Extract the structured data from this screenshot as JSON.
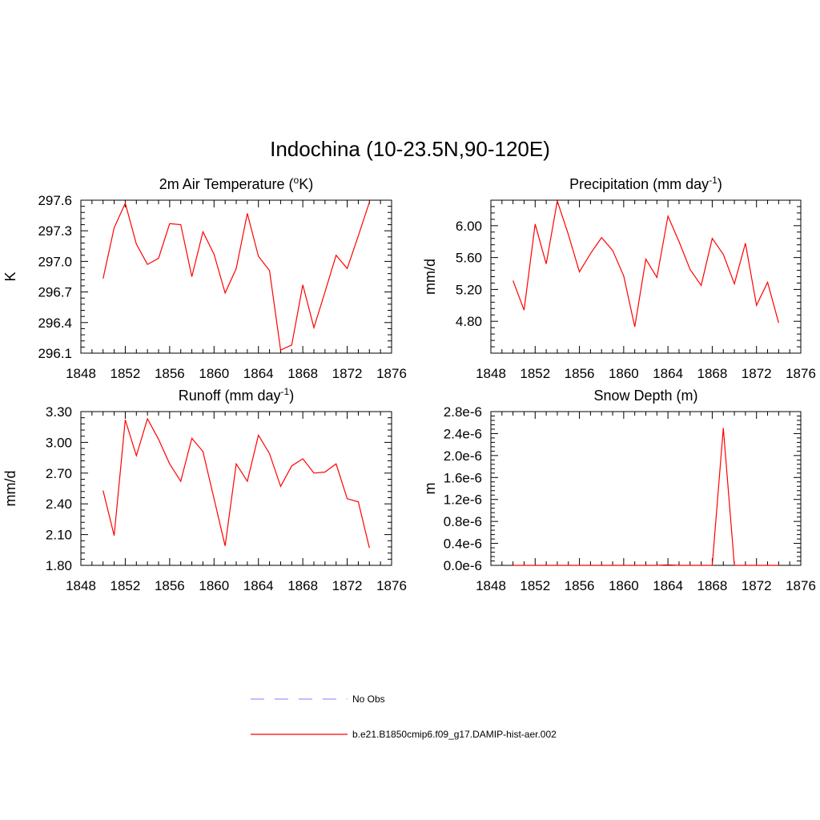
{
  "title": "Indochina (10-23.5N,90-120E)",
  "colors": {
    "model": "#ff0000",
    "obs": "#9999ff"
  },
  "legend": {
    "entries": [
      {
        "label": "No Obs",
        "style": "dashed",
        "color": "#9999ff"
      },
      {
        "label": "b.e21.B1850cmip6.f09_g17.DAMIP-hist-aer.002",
        "style": "solid",
        "color": "#ff0000"
      }
    ],
    "placement": "bottom-center"
  },
  "chart_data": [
    {
      "type": "line",
      "title": "2m Air Temperature (",
      "title_sup": "o",
      "title_end": "K)",
      "ylabel": "K",
      "xlim": [
        1848,
        1876
      ],
      "ylim": [
        296.1,
        297.6
      ],
      "xticks": [
        "1848",
        "1852",
        "1856",
        "1860",
        "1864",
        "1868",
        "1872",
        "1876"
      ],
      "yticks": [
        "296.1",
        "296.4",
        "296.7",
        "297.0",
        "297.3",
        "297.6"
      ],
      "grid": false,
      "x": [
        1850,
        1851,
        1852,
        1853,
        1854,
        1855,
        1856,
        1857,
        1858,
        1859,
        1860,
        1861,
        1862,
        1863,
        1864,
        1865,
        1866,
        1867,
        1868,
        1869,
        1870,
        1871,
        1872,
        1873,
        1874
      ],
      "series": [
        {
          "name": "b.e21.B1850cmip6.f09_g17.DAMIP-hist-aer.002",
          "values": [
            296.83,
            297.33,
            297.57,
            297.17,
            296.97,
            297.03,
            297.37,
            297.36,
            296.85,
            297.29,
            297.07,
            296.69,
            296.93,
            297.47,
            297.05,
            296.91,
            296.13,
            296.18,
            296.77,
            296.35,
            296.7,
            297.06,
            296.93,
            297.25,
            297.58
          ]
        }
      ]
    },
    {
      "type": "line",
      "title": "Precipitation (mm day",
      "title_sup": "-1",
      "title_end": ")",
      "ylabel": "mm/d",
      "xlim": [
        1848,
        1876
      ],
      "ylim": [
        4.4,
        6.32
      ],
      "xticks": [
        "1848",
        "1852",
        "1856",
        "1860",
        "1864",
        "1868",
        "1872",
        "1876"
      ],
      "yticks": [
        "4.80",
        "5.20",
        "5.60",
        "6.00"
      ],
      "grid": false,
      "x": [
        1850,
        1851,
        1852,
        1853,
        1854,
        1855,
        1856,
        1857,
        1858,
        1859,
        1860,
        1861,
        1862,
        1863,
        1864,
        1865,
        1866,
        1867,
        1868,
        1869,
        1870,
        1871,
        1872,
        1873,
        1874
      ],
      "series": [
        {
          "name": "b.e21.B1850cmip6.f09_g17.DAMIP-hist-aer.002",
          "values": [
            5.31,
            4.94,
            6.02,
            5.52,
            6.31,
            5.89,
            5.42,
            5.65,
            5.85,
            5.69,
            5.37,
            4.73,
            5.58,
            5.35,
            6.12,
            5.8,
            5.45,
            5.25,
            5.84,
            5.64,
            5.27,
            5.78,
            5.0,
            5.29,
            4.78
          ]
        }
      ]
    },
    {
      "type": "line",
      "title": "Runoff (mm day",
      "title_sup": "-1",
      "title_end": ")",
      "ylabel": "mm/d",
      "xlim": [
        1848,
        1876
      ],
      "ylim": [
        1.8,
        3.3
      ],
      "xticks": [
        "1848",
        "1852",
        "1856",
        "1860",
        "1864",
        "1868",
        "1872",
        "1876"
      ],
      "yticks": [
        "1.80",
        "2.10",
        "2.40",
        "2.70",
        "3.00",
        "3.30"
      ],
      "grid": false,
      "x": [
        1850,
        1851,
        1852,
        1853,
        1854,
        1855,
        1856,
        1857,
        1858,
        1859,
        1860,
        1861,
        1862,
        1863,
        1864,
        1865,
        1866,
        1867,
        1868,
        1869,
        1870,
        1871,
        1872,
        1873,
        1874
      ],
      "series": [
        {
          "name": "b.e21.B1850cmip6.f09_g17.DAMIP-hist-aer.002",
          "values": [
            2.53,
            2.09,
            3.22,
            2.87,
            3.23,
            3.03,
            2.79,
            2.62,
            3.04,
            2.91,
            2.45,
            1.99,
            2.79,
            2.62,
            3.07,
            2.89,
            2.57,
            2.77,
            2.84,
            2.7,
            2.71,
            2.79,
            2.45,
            2.42,
            1.97
          ]
        }
      ]
    },
    {
      "type": "line",
      "title": "Snow Depth (m)",
      "title_sup": "",
      "title_end": "",
      "ylabel": "m",
      "xlim": [
        1848,
        1876
      ],
      "ylim": [
        0,
        2.8e-06
      ],
      "xticks": [
        "1848",
        "1852",
        "1856",
        "1860",
        "1864",
        "1868",
        "1872",
        "1876"
      ],
      "yticks": [
        "0.0e-6",
        "0.4e-6",
        "0.8e-6",
        "1.2e-6",
        "1.6e-6",
        "2.0e-6",
        "2.4e-6",
        "2.8e-6"
      ],
      "grid": false,
      "x": [
        1850,
        1851,
        1852,
        1853,
        1854,
        1855,
        1856,
        1857,
        1858,
        1859,
        1860,
        1861,
        1862,
        1863,
        1864,
        1865,
        1866,
        1867,
        1868,
        1869,
        1870,
        1871,
        1872,
        1873,
        1874
      ],
      "series": [
        {
          "name": "b.e21.B1850cmip6.f09_g17.DAMIP-hist-aer.002",
          "values": [
            0,
            0,
            0,
            0,
            0,
            0,
            0,
            0,
            0,
            0,
            0,
            0,
            0,
            0,
            1e-08,
            0,
            0,
            0,
            0,
            2.5e-06,
            0,
            0,
            0,
            0,
            0
          ]
        }
      ]
    }
  ]
}
